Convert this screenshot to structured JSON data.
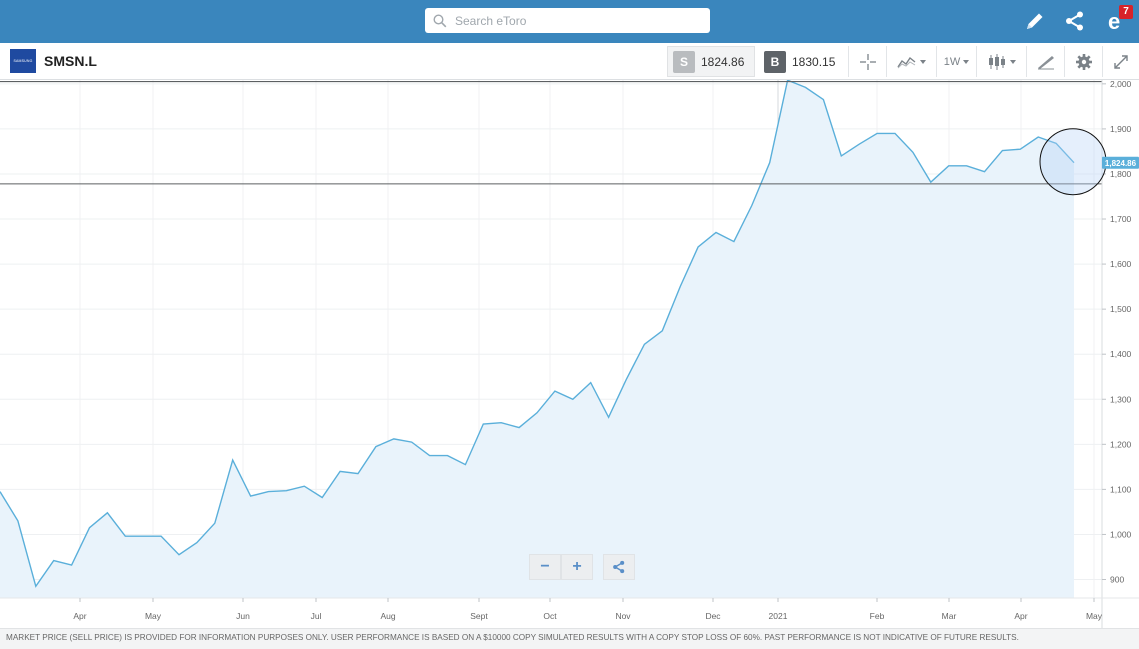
{
  "search": {
    "placeholder": "Search eToro"
  },
  "header_icons": [
    {
      "name": "edit-icon"
    },
    {
      "name": "share-icon"
    },
    {
      "name": "notifications-icon",
      "badge": "7"
    }
  ],
  "instrument": {
    "ticker": "SMSN.L",
    "logo_text": "SAMSUNG"
  },
  "toolbar": {
    "sell_label": "S",
    "sell_price": "1824.86",
    "buy_label": "B",
    "buy_price": "1830.15",
    "timeframe": "1W"
  },
  "colors": {
    "topbar": "#3a86bd",
    "line": "#5aafda",
    "area": "#e9f3fb",
    "sell_badge": "#b9bcbf",
    "buy_badge": "#5e6368",
    "price_tag": "#5aafda"
  },
  "chart_data": {
    "type": "area",
    "x_labels": [
      "Apr",
      "May",
      "Jun",
      "Jul",
      "Aug",
      "Sept",
      "Oct",
      "Nov",
      "Dec",
      "2021",
      "Feb",
      "Mar",
      "Apr",
      "May"
    ],
    "y_ticks": [
      "2,000",
      "1,900",
      "1,800",
      "1,700",
      "1,600",
      "1,500",
      "1,400",
      "1,300",
      "1,200",
      "1,100",
      "1,000",
      "900"
    ],
    "ylim": [
      870,
      2020
    ],
    "values": [
      1095,
      1030,
      885,
      942,
      932,
      1015,
      1048,
      996,
      996,
      996,
      955,
      982,
      1025,
      1165,
      1085,
      1095,
      1097,
      1107,
      1082,
      1140,
      1135,
      1195,
      1212,
      1205,
      1175,
      1175,
      1155,
      1245,
      1248,
      1237,
      1270,
      1318,
      1300,
      1337,
      1260,
      1345,
      1422,
      1452,
      1550,
      1638,
      1670,
      1650,
      1730,
      1825,
      2008,
      1992,
      1965,
      1840,
      1866,
      1890,
      1890,
      1848,
      1782,
      1818,
      1818,
      1805,
      1852,
      1855,
      1882,
      1868,
      1825
    ],
    "current_price_label": "1,824.86",
    "reference_lines": [
      2005,
      1778
    ]
  },
  "zoom": {
    "minus": "−",
    "plus": "+"
  },
  "disclaimer": "MARKET PRICE (SELL PRICE) IS PROVIDED FOR INFORMATION PURPOSES ONLY. USER PERFORMANCE IS BASED ON A $10000 COPY SIMULATED RESULTS WITH A COPY STOP LOSS OF 60%. PAST PERFORMANCE IS NOT INDICATIVE OF FUTURE RESULTS."
}
